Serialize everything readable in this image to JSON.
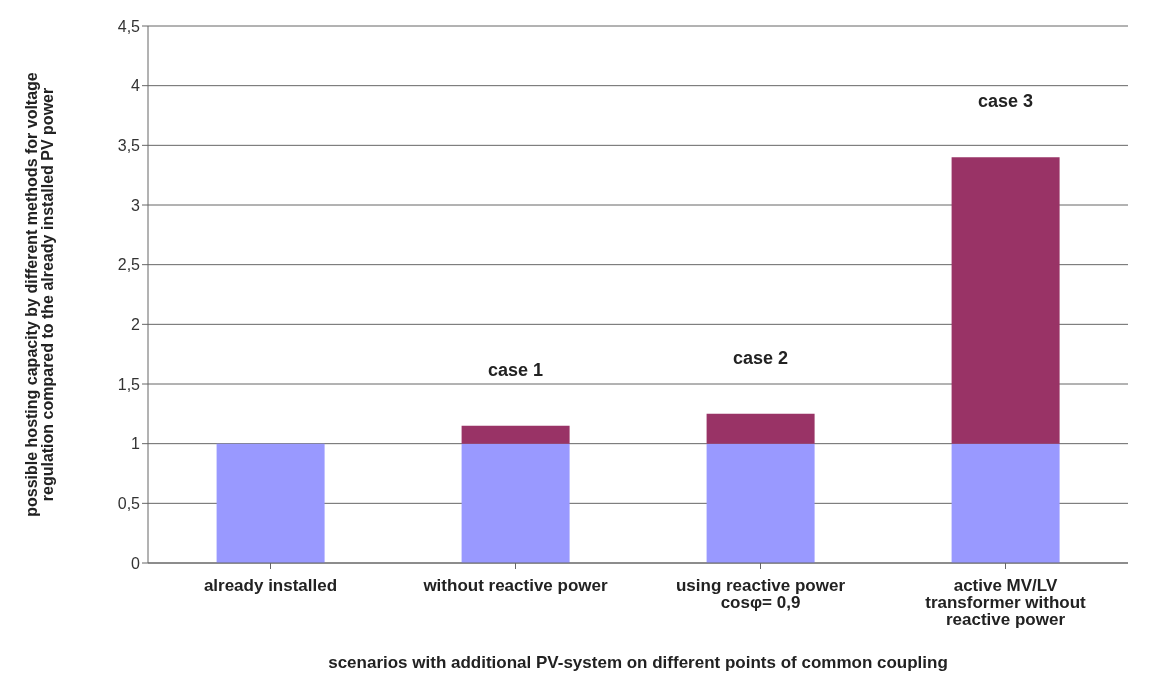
{
  "chart_data": {
    "type": "bar",
    "stacked": true,
    "xlabel": "scenarios with additional PV-system on different points of common coupling",
    "ylabel": "possible hosting capacity by different methods for voltage regulation compared to the already installed PV power",
    "categories": [
      "already installed",
      "without reactive power",
      "using reactive power cosφ= 0,9",
      "active MV/LV transformer without reactive power"
    ],
    "series": [
      {
        "color": "#9999ff",
        "values": [
          1,
          1,
          1,
          1
        ]
      },
      {
        "color": "#993366",
        "values": [
          0,
          0.15,
          0.25,
          2.4
        ]
      }
    ],
    "ylim": [
      0,
      4.5
    ],
    "yticks": [
      0,
      {
        "value": 0.5,
        "label": "0,5"
      },
      1,
      {
        "value": 1.5,
        "label": "1,5"
      },
      2,
      {
        "value": 2.5,
        "label": "2,5"
      },
      3,
      {
        "value": 3.5,
        "label": "3,5"
      },
      4,
      {
        "value": 4.5,
        "label": "4,5"
      }
    ],
    "grid": "y",
    "legend": false,
    "annotations": [
      {
        "text": "case 1",
        "x": "without reactive power",
        "y": 1.15
      },
      {
        "text": "case 2",
        "x": "using reactive power cosφ= 0,9",
        "y": 1.25
      },
      {
        "text": "case 3",
        "x": "active MV/LV transformer without reactive power",
        "y": 3.4
      }
    ]
  }
}
